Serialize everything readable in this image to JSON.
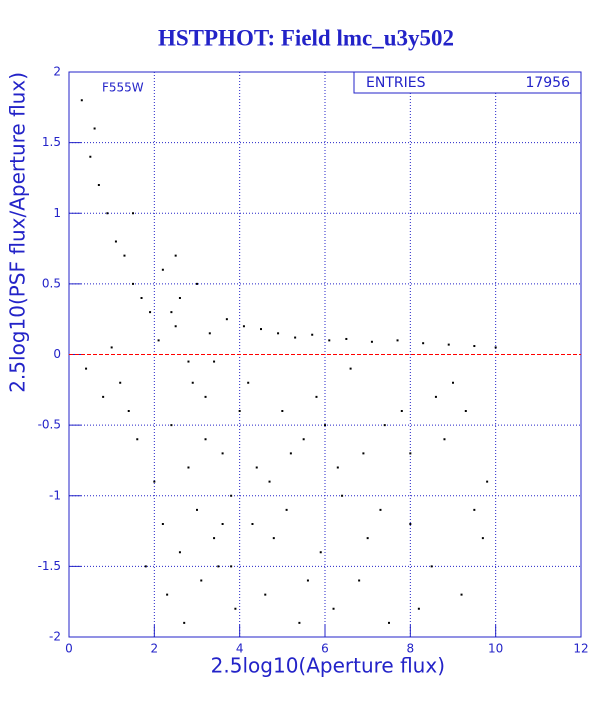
{
  "chart_data": {
    "type": "scatter",
    "title": "HSTPHOT: Field lmc_u3y502",
    "xlabel": "2.5log10(Aperture flux)",
    "ylabel": "2.5log10(PSF flux/Aperture flux)",
    "annotation": "F555W",
    "stats_label": "ENTRIES",
    "entries": 17956,
    "xlim": [
      0,
      12
    ],
    "ylim": [
      -2,
      2
    ],
    "xticks": [
      0,
      2,
      4,
      6,
      8,
      10,
      12
    ],
    "yticks": [
      -2,
      -1.5,
      -1,
      -0.5,
      0,
      0.5,
      1,
      1.5,
      2
    ],
    "grid": true,
    "axis_color": "#2323c8",
    "color": "#000000",
    "reference_line": {
      "value": 0,
      "color": "#ff0000"
    },
    "x": [
      0.3,
      0.5,
      0.7,
      0.9,
      1.1,
      1.3,
      1.5,
      1.7,
      1.9,
      0.4,
      0.8,
      1.2,
      1.6,
      2.0,
      2.2,
      2.4,
      2.6,
      2.8,
      3.0,
      3.2,
      3.4,
      3.6,
      3.8,
      4.0,
      2.1,
      2.3,
      2.5,
      2.7,
      2.9,
      3.1,
      3.3,
      3.5,
      3.7,
      3.9,
      4.1,
      4.3,
      4.5,
      4.7,
      4.9,
      5.1,
      5.3,
      5.5,
      5.7,
      5.9,
      6.1,
      6.3,
      6.5,
      6.8,
      7.1,
      7.4,
      7.7,
      8.0,
      8.3,
      8.6,
      8.9,
      9.2,
      9.5,
      9.8,
      10.0,
      2.2,
      2.6,
      3.0,
      3.4,
      3.8,
      4.2,
      4.6,
      5.0,
      5.4,
      5.8,
      6.2,
      6.6,
      7.0,
      7.5,
      8.0,
      8.5,
      9.0,
      9.5,
      1.0,
      1.4,
      1.8,
      2.4,
      2.8,
      3.2,
      3.6,
      4.4,
      4.8,
      5.2,
      5.6,
      6.0,
      6.4,
      6.9,
      7.3,
      7.8,
      8.2,
      8.8,
      9.3,
      9.7,
      0.6,
      1.5,
      2.5
    ],
    "y": [
      1.8,
      1.4,
      1.2,
      1.0,
      0.8,
      0.7,
      0.5,
      0.4,
      0.3,
      -0.1,
      -0.3,
      -0.2,
      -0.6,
      -0.9,
      -1.2,
      -0.5,
      -1.4,
      -0.8,
      -1.1,
      -0.3,
      -1.3,
      -0.7,
      -1.0,
      -0.4,
      0.1,
      -1.7,
      0.2,
      -1.9,
      -0.2,
      -1.6,
      0.15,
      -1.5,
      0.25,
      -1.8,
      0.2,
      -1.2,
      0.18,
      -0.9,
      0.15,
      -1.1,
      0.12,
      -0.6,
      0.14,
      -1.4,
      0.1,
      -0.8,
      0.11,
      -1.6,
      0.09,
      -0.5,
      0.1,
      -1.2,
      0.08,
      -0.3,
      0.07,
      -1.7,
      0.06,
      -0.9,
      0.05,
      0.6,
      0.4,
      0.5,
      -0.05,
      -1.5,
      -0.2,
      -1.7,
      -0.4,
      -1.9,
      -0.3,
      -1.8,
      -0.1,
      -1.3,
      -1.9,
      -0.7,
      -1.5,
      -0.2,
      -1.1,
      0.05,
      -0.4,
      -1.5,
      0.3,
      -0.05,
      -0.6,
      -1.2,
      -0.8,
      -1.3,
      -0.7,
      -1.6,
      -0.5,
      -1.0,
      -0.7,
      -1.1,
      -0.4,
      -1.8,
      -0.6,
      -0.4,
      -1.3,
      1.6,
      1.0,
      0.7
    ]
  }
}
